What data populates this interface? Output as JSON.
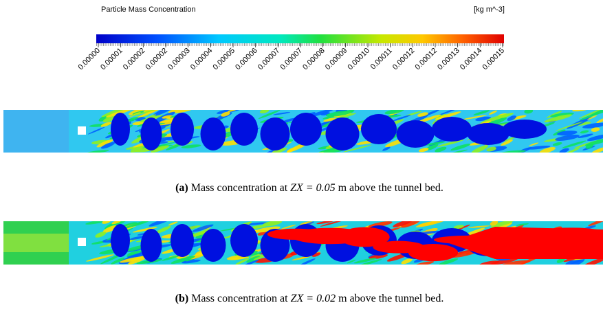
{
  "colorbar": {
    "title": "Particle Mass Concentration",
    "unit": "[kg m^-3]",
    "tick_labels": [
      "0.00000",
      "0.00001",
      "0.00002",
      "0.00002",
      "0.00003",
      "0.00004",
      "0.00005",
      "0.00006",
      "0.00007",
      "0.00007",
      "0.00008",
      "0.00009",
      "0.00010",
      "0.00011",
      "0.00012",
      "0.00012",
      "0.00013",
      "0.00014",
      "0.00015"
    ]
  },
  "figures": [
    {
      "label": "(a)",
      "text_before": "Mass concentration at",
      "math": "ZX = 0.05",
      "text_after": "m above the tunnel bed."
    },
    {
      "label": "(b)",
      "text_before": "Mass concentration at",
      "math": "ZX = 0.02",
      "text_after": "m above the tunnel bed."
    }
  ]
}
